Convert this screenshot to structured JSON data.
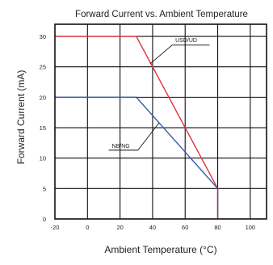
{
  "chart_data": {
    "type": "line",
    "title": "Forward  Current vs. Ambient Temperature",
    "xlabel": "Ambient Temperature (°C)",
    "ylabel": "Forward Current (mA)",
    "xlim": [
      -20,
      110
    ],
    "ylim": [
      0,
      32
    ],
    "x_ticks": [
      -20,
      0,
      20,
      40,
      60,
      80,
      100
    ],
    "x_tick_labels": [
      "-20",
      "0",
      "20",
      "40",
      "60",
      "80",
      "100"
    ],
    "y_ticks": [
      0,
      5,
      10,
      15,
      20,
      25,
      30
    ],
    "y_tick_labels": [
      "0",
      "5",
      "10",
      "15",
      "20",
      "25",
      "30"
    ],
    "grid": true,
    "series": [
      {
        "name": "USD/UD",
        "color": "#e0303a",
        "points": [
          [
            -20,
            30
          ],
          [
            30,
            30
          ],
          [
            80,
            5
          ],
          [
            80,
            0
          ]
        ]
      },
      {
        "name": "NB/NG",
        "color": "#3a5aa8",
        "points": [
          [
            -20,
            20
          ],
          [
            30,
            20
          ],
          [
            80,
            5
          ],
          [
            80,
            0
          ]
        ]
      }
    ]
  }
}
